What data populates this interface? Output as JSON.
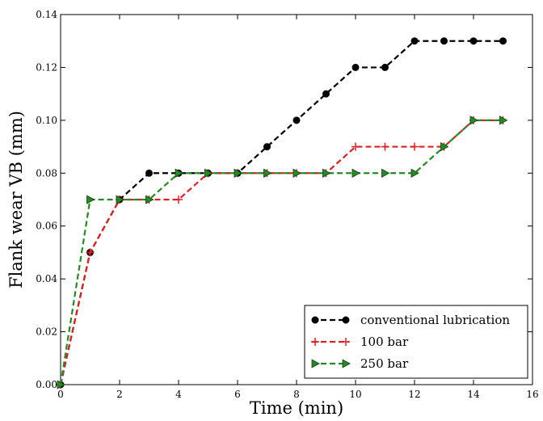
{
  "chart_data": {
    "type": "line",
    "title": "",
    "xlabel": "Time (min)",
    "ylabel": "Flank wear VB (mm)",
    "xlim": [
      0,
      16
    ],
    "ylim": [
      0,
      0.14
    ],
    "x_ticks": [
      "0",
      "2",
      "4",
      "6",
      "8",
      "10",
      "12",
      "14",
      "16"
    ],
    "y_ticks": [
      "0.00",
      "0.02",
      "0.04",
      "0.06",
      "0.08",
      "0.10",
      "0.12",
      "0.14"
    ],
    "x_tick_values": [
      0,
      2,
      4,
      6,
      8,
      10,
      12,
      14,
      16
    ],
    "y_tick_values": [
      0,
      0.02,
      0.04,
      0.06,
      0.08,
      0.1,
      0.12,
      0.14
    ],
    "grid": false,
    "legend_position": "bottom-right",
    "series": [
      {
        "name": "conventional lubrication",
        "color": "#000000",
        "marker": "circle",
        "x": [
          0,
          1,
          2,
          3,
          4,
          5,
          6,
          7,
          8,
          9,
          10,
          11,
          12,
          13,
          14,
          15
        ],
        "y": [
          0.0,
          0.05,
          0.07,
          0.08,
          0.08,
          0.08,
          0.08,
          0.09,
          0.1,
          0.11,
          0.12,
          0.12,
          0.13,
          0.13,
          0.13,
          0.13
        ]
      },
      {
        "name": "100 bar",
        "color": "#e02020",
        "marker": "plus",
        "x": [
          0,
          1,
          2,
          3,
          4,
          5,
          6,
          7,
          8,
          9,
          10,
          11,
          12,
          13,
          14,
          15
        ],
        "y": [
          0.0,
          0.05,
          0.07,
          0.07,
          0.07,
          0.08,
          0.08,
          0.08,
          0.08,
          0.08,
          0.09,
          0.09,
          0.09,
          0.09,
          0.1,
          0.1
        ]
      },
      {
        "name": "250 bar",
        "color": "#228b22",
        "marker": "triangle-right",
        "x": [
          0,
          1,
          2,
          3,
          4,
          5,
          6,
          7,
          8,
          9,
          10,
          11,
          12,
          13,
          14,
          15
        ],
        "y": [
          0.0,
          0.07,
          0.07,
          0.07,
          0.08,
          0.08,
          0.08,
          0.08,
          0.08,
          0.08,
          0.08,
          0.08,
          0.08,
          0.09,
          0.1,
          0.1
        ]
      }
    ]
  }
}
